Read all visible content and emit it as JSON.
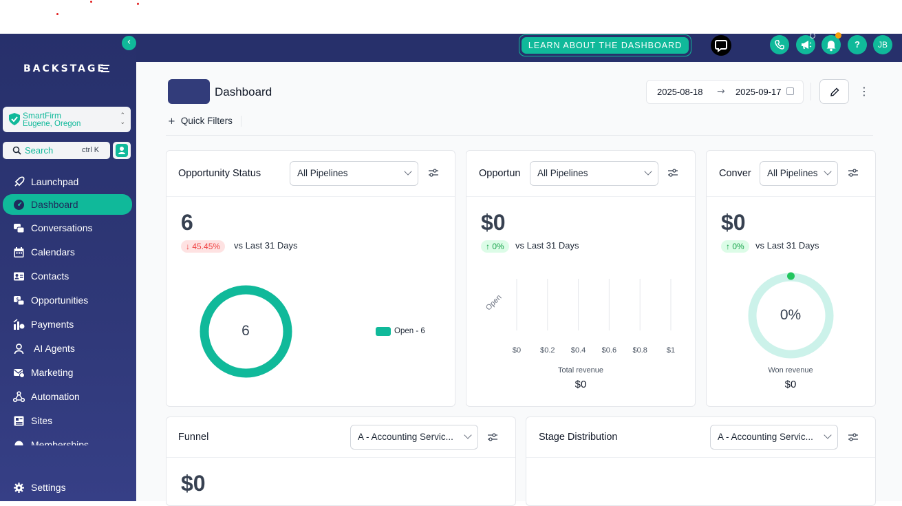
{
  "app": {
    "brand": "BACKSTAGE",
    "account": {
      "name": "SmartFirm",
      "location": "Eugene, Oregon"
    },
    "search": {
      "label": "Search",
      "shortcut": "ctrl K"
    },
    "colors": {
      "accent": "#10b99a",
      "navy": "#27306b"
    }
  },
  "sidebar": {
    "items": [
      {
        "label": "Launchpad",
        "icon": "rocket-icon"
      },
      {
        "label": "Dashboard",
        "icon": "dashboard-icon",
        "active": true
      },
      {
        "label": "Conversations",
        "icon": "chat-icon"
      },
      {
        "label": "Calendars",
        "icon": "calendar-icon"
      },
      {
        "label": "Contacts",
        "icon": "contacts-icon"
      },
      {
        "label": "Opportunities",
        "icon": "opportunities-icon"
      },
      {
        "label": "Payments",
        "icon": "payments-icon"
      },
      {
        "label": "AI Agents",
        "icon": "agent-icon"
      },
      {
        "label": "Marketing",
        "icon": "marketing-icon"
      },
      {
        "label": "Automation",
        "icon": "automation-icon"
      },
      {
        "label": "Sites",
        "icon": "sites-icon"
      },
      {
        "label": "Memberships",
        "icon": "memberships-icon"
      }
    ],
    "settings_label": "Settings"
  },
  "header": {
    "learn_label": "LEARN ABOUT THE DASHBOARD",
    "user_initials": "JB",
    "help_label": "?"
  },
  "page": {
    "title": "Dashboard",
    "date_start": "2025-08-18",
    "date_end": "2025-09-17",
    "quick_filters": "Quick Filters"
  },
  "cards": {
    "opportunity_status": {
      "title": "Opportunity Status",
      "pipeline": "All Pipelines",
      "value": "6",
      "change": "45.45%",
      "change_arrow": "↓",
      "vs": "vs Last 31 Days",
      "donut_center": "6",
      "legend": "Open - 6"
    },
    "opportunity_value": {
      "title": "Opportun",
      "pipeline": "All Pipelines",
      "value": "$0",
      "change": "0%",
      "change_arrow": "↑",
      "vs": "vs Last 31 Days",
      "axis_category": "Open",
      "ticks": [
        "$0",
        "$0.2",
        "$0.4",
        "$0.6",
        "$0.8",
        "$1"
      ],
      "caption": "Total revenue",
      "caption_value": "$0"
    },
    "conversion": {
      "title": "Conver",
      "pipeline": "All Pipelines",
      "value": "$0",
      "change": "0%",
      "change_arrow": "↑",
      "vs": "vs Last 31 Days",
      "gauge_center": "0%",
      "caption": "Won revenue",
      "caption_value": "$0"
    },
    "funnel": {
      "title": "Funnel",
      "pipeline": "A - Accounting Servic...",
      "value": "$0"
    },
    "stage_distribution": {
      "title": "Stage Distribution",
      "pipeline": "A - Accounting Servic..."
    }
  },
  "chart_data": [
    {
      "type": "pie",
      "title": "",
      "categories": [
        "Open"
      ],
      "values": [
        6
      ]
    },
    {
      "type": "bar",
      "title": "",
      "categories": [
        "Open"
      ],
      "values": [
        0
      ],
      "xlabel": "Total revenue",
      "xlim": [
        0,
        1
      ],
      "tick_labels": [
        "$0",
        "$0.2",
        "$0.4",
        "$0.6",
        "$0.8",
        "$1"
      ]
    }
  ]
}
